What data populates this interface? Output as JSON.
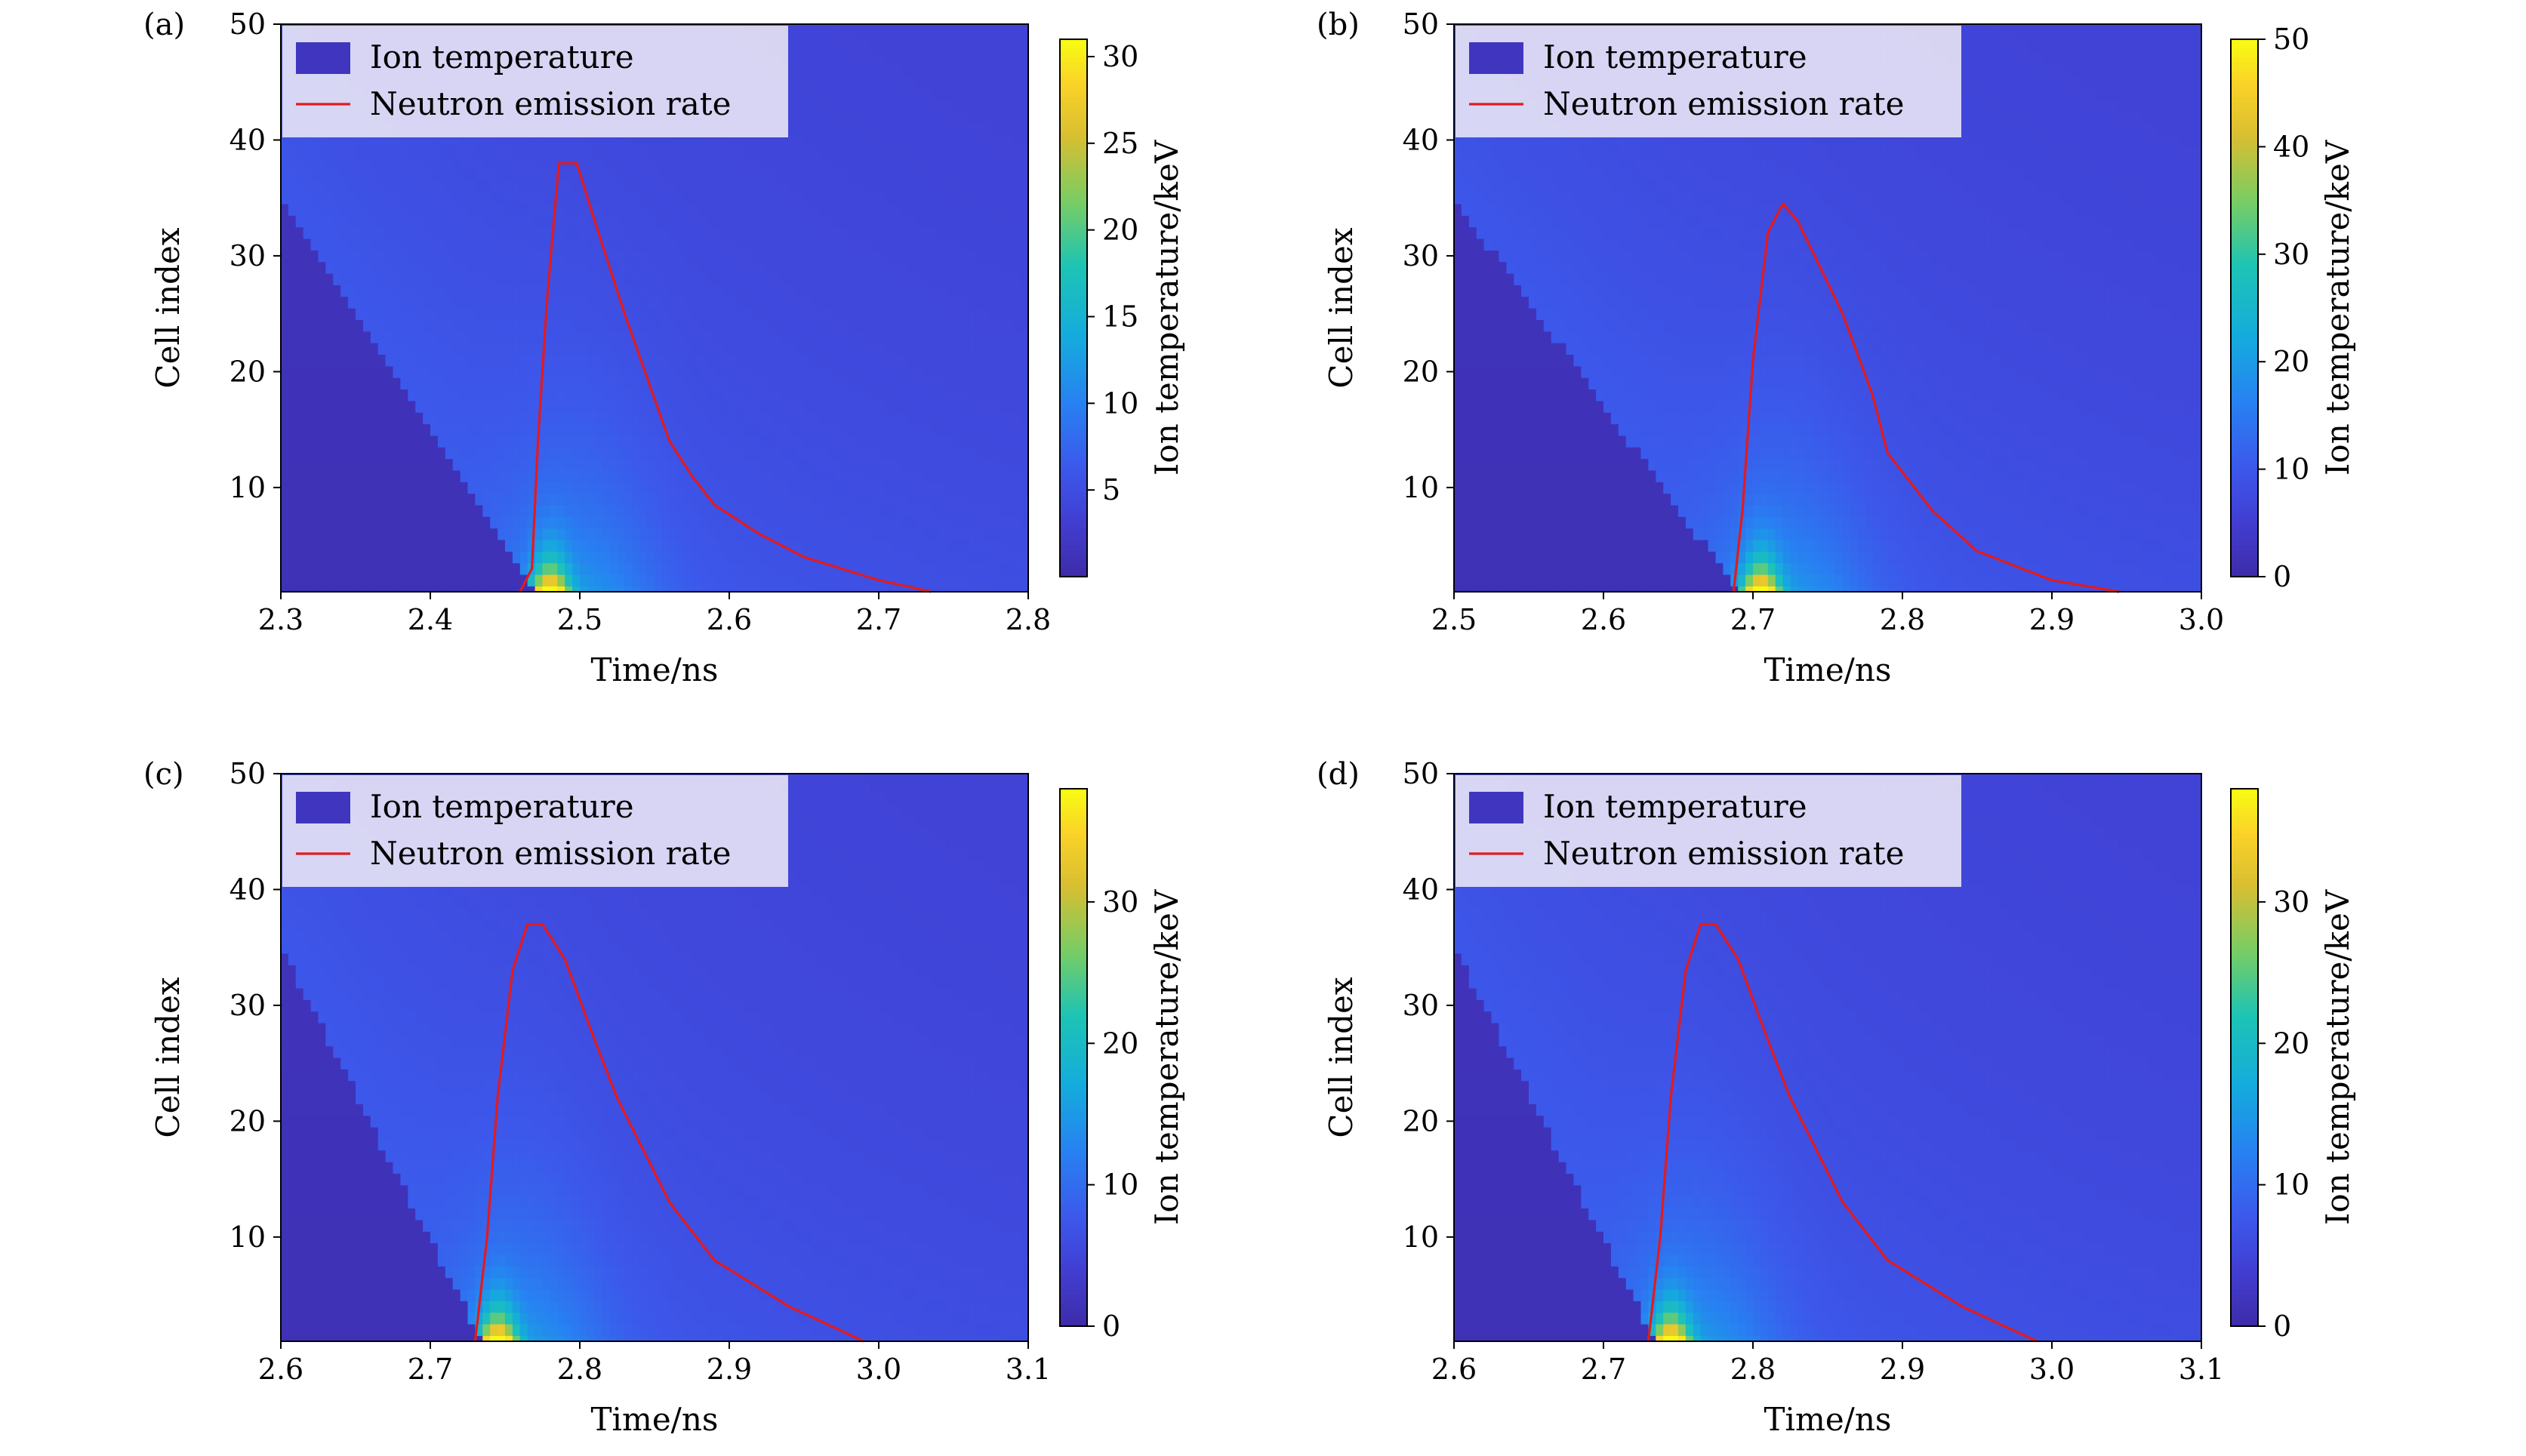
{
  "figure": {
    "panel_labels": [
      "(a)",
      "(b)",
      "(c)",
      "(d)"
    ]
  },
  "chart_data": [
    {
      "type": "heatmap",
      "panel": "(a)",
      "xlabel": "Time/ns",
      "ylabel": "Cell index",
      "xlim": [
        2.3,
        2.8
      ],
      "ylim": [
        1,
        50
      ],
      "xticks": [
        2.3,
        2.4,
        2.5,
        2.6,
        2.7,
        2.8
      ],
      "yticks": [
        10,
        20,
        30,
        40,
        50
      ],
      "colorbar": {
        "label": "Ion temperature/keV",
        "range": [
          0,
          31
        ],
        "ticks": [
          5,
          10,
          15,
          20,
          25,
          30
        ]
      },
      "legend": {
        "position": "top-left",
        "entries": [
          {
            "label": "Ion temperature",
            "kind": "patch"
          },
          {
            "label": "Neutron emission rate",
            "kind": "line"
          }
        ]
      },
      "heat_model": {
        "front_t_at_cell1": 2.47,
        "front_t_at_cell35": 2.3,
        "hot_spot_t": 2.48,
        "hot_spot_max": 31
      },
      "series": [
        {
          "name": "Neutron emission rate",
          "color": "#e41a1c",
          "x": [
            2.46,
            2.468,
            2.472,
            2.478,
            2.486,
            2.498,
            2.51,
            2.53,
            2.56,
            2.575,
            2.59,
            2.62,
            2.65,
            2.7,
            2.735
          ],
          "y": [
            1,
            3,
            14,
            26,
            38,
            38,
            33,
            25,
            14,
            11,
            8.5,
            6,
            4,
            2,
            1
          ]
        }
      ]
    },
    {
      "type": "heatmap",
      "panel": "(b)",
      "xlabel": "Time/ns",
      "ylabel": "Cell index",
      "xlim": [
        2.5,
        3.0
      ],
      "ylim": [
        1,
        50
      ],
      "xticks": [
        2.5,
        2.6,
        2.7,
        2.8,
        2.9,
        3.0
      ],
      "yticks": [
        10,
        20,
        30,
        40,
        50
      ],
      "colorbar": {
        "label": "Ion temperature/keV",
        "range": [
          0,
          50
        ],
        "ticks": [
          0,
          10,
          20,
          30,
          40,
          50
        ]
      },
      "legend": {
        "position": "top-left",
        "entries": [
          {
            "label": "Ion temperature",
            "kind": "patch"
          },
          {
            "label": "Neutron emission rate",
            "kind": "line"
          }
        ]
      },
      "heat_model": {
        "front_t_at_cell1": 2.69,
        "front_t_at_cell35": 2.5,
        "hot_spot_t": 2.705,
        "hot_spot_max": 50
      },
      "series": [
        {
          "name": "Neutron emission rate",
          "color": "#e41a1c",
          "x": [
            2.687,
            2.693,
            2.7,
            2.71,
            2.72,
            2.73,
            2.76,
            2.78,
            2.79,
            2.82,
            2.85,
            2.9,
            2.945
          ],
          "y": [
            1,
            8,
            21,
            32,
            34.5,
            33,
            25,
            18,
            13,
            8,
            4.5,
            2,
            1
          ]
        }
      ]
    },
    {
      "type": "heatmap",
      "panel": "(c)",
      "xlabel": "Time/ns",
      "ylabel": "Cell index",
      "xlim": [
        2.6,
        3.1
      ],
      "ylim": [
        1,
        50
      ],
      "xticks": [
        2.6,
        2.7,
        2.8,
        2.9,
        3.0,
        3.1
      ],
      "yticks": [
        10,
        20,
        30,
        40,
        50
      ],
      "colorbar": {
        "label": "Ion temperature/keV",
        "range": [
          0,
          38
        ],
        "ticks": [
          0,
          10,
          20,
          30
        ]
      },
      "legend": {
        "position": "top-left",
        "entries": [
          {
            "label": "Ion temperature",
            "kind": "patch"
          },
          {
            "label": "Neutron emission rate",
            "kind": "line"
          }
        ]
      },
      "heat_model": {
        "front_t_at_cell1": 2.735,
        "front_t_at_cell35": 2.6,
        "hot_spot_t": 2.745,
        "hot_spot_max": 38
      },
      "series": [
        {
          "name": "Neutron emission rate",
          "color": "#e41a1c",
          "x": [
            2.73,
            2.738,
            2.745,
            2.755,
            2.765,
            2.775,
            2.79,
            2.81,
            2.825,
            2.86,
            2.89,
            2.94,
            2.99
          ],
          "y": [
            1,
            10,
            22,
            33,
            37,
            37,
            34,
            27,
            22,
            13,
            8,
            4,
            1
          ]
        }
      ]
    },
    {
      "type": "heatmap",
      "panel": "(d)",
      "xlabel": "Time/ns",
      "ylabel": "Cell index",
      "xlim": [
        2.6,
        3.1
      ],
      "ylim": [
        1,
        50
      ],
      "xticks": [
        2.6,
        2.7,
        2.8,
        2.9,
        3.0,
        3.1
      ],
      "yticks": [
        10,
        20,
        30,
        40,
        50
      ],
      "colorbar": {
        "label": "Ion temperature/keV",
        "range": [
          0,
          38
        ],
        "ticks": [
          0,
          10,
          20,
          30
        ]
      },
      "legend": {
        "position": "top-left",
        "entries": [
          {
            "label": "Ion temperature",
            "kind": "patch"
          },
          {
            "label": "Neutron emission rate",
            "kind": "line"
          }
        ]
      },
      "heat_model": {
        "front_t_at_cell1": 2.735,
        "front_t_at_cell35": 2.6,
        "hot_spot_t": 2.745,
        "hot_spot_max": 38
      },
      "series": [
        {
          "name": "Neutron emission rate",
          "color": "#e41a1c",
          "x": [
            2.73,
            2.738,
            2.745,
            2.755,
            2.765,
            2.775,
            2.79,
            2.81,
            2.825,
            2.86,
            2.89,
            2.94,
            2.99
          ],
          "y": [
            1,
            10,
            22,
            33,
            37,
            37,
            34,
            27,
            22,
            13,
            8,
            4,
            1
          ]
        }
      ]
    }
  ]
}
